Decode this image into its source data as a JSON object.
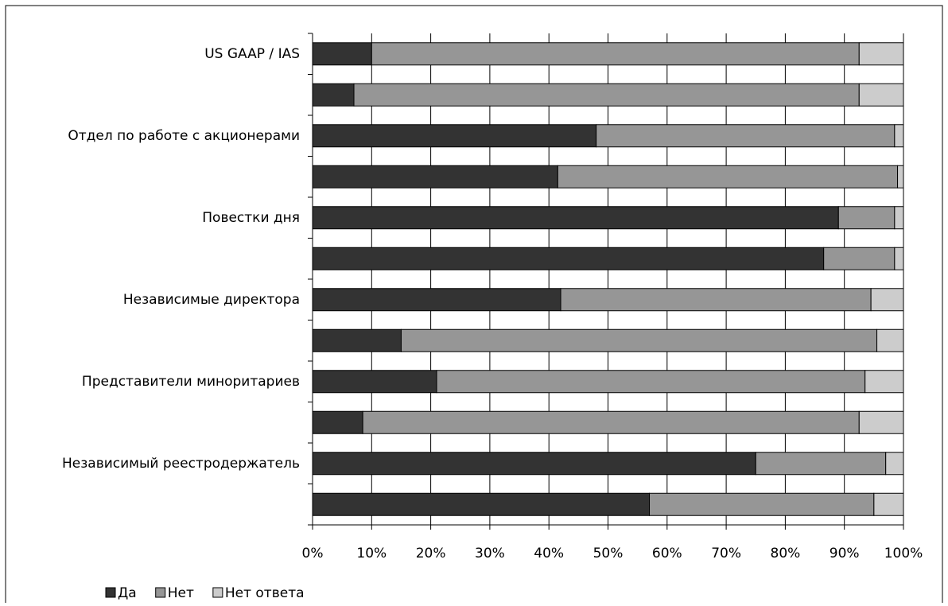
{
  "chart_data": {
    "type": "stacked-barh",
    "categories": [
      "US GAAP / IAS",
      null,
      "Отдел по работе с акционерами",
      null,
      "Повестки дня",
      null,
      "Независимые директора",
      null,
      "Представители миноритариев",
      null,
      "Независимый реестродержатель",
      null
    ],
    "series": [
      {
        "name": "Да",
        "color": "#333333",
        "values": [
          10,
          7,
          48,
          41.5,
          89,
          86.5,
          42,
          15,
          21,
          8.5,
          75,
          57
        ]
      },
      {
        "name": "Нет",
        "color": "#969696",
        "values": [
          82.5,
          85.5,
          50.5,
          57.5,
          9.5,
          12,
          52.5,
          80.5,
          72.5,
          84,
          22,
          38
        ]
      },
      {
        "name": "Нет ответа",
        "color": "#cccccc",
        "values": [
          7.5,
          7.5,
          1.5,
          1,
          1.5,
          1.5,
          5.5,
          4.5,
          6.5,
          7.5,
          3,
          5
        ]
      }
    ],
    "xlim": [
      0,
      100
    ],
    "xticks": [
      {
        "value": 0,
        "label": "0%"
      },
      {
        "value": 10,
        "label": "10%"
      },
      {
        "value": 20,
        "label": "20%"
      },
      {
        "value": 30,
        "label": "30%"
      },
      {
        "value": 40,
        "label": "40%"
      },
      {
        "value": 50,
        "label": "50%"
      },
      {
        "value": 60,
        "label": "60%"
      },
      {
        "value": 70,
        "label": "70%"
      },
      {
        "value": 80,
        "label": "80%"
      },
      {
        "value": 90,
        "label": "90%"
      },
      {
        "value": 100,
        "label": "100%"
      }
    ],
    "grid": true,
    "legend": "bottom-left"
  }
}
